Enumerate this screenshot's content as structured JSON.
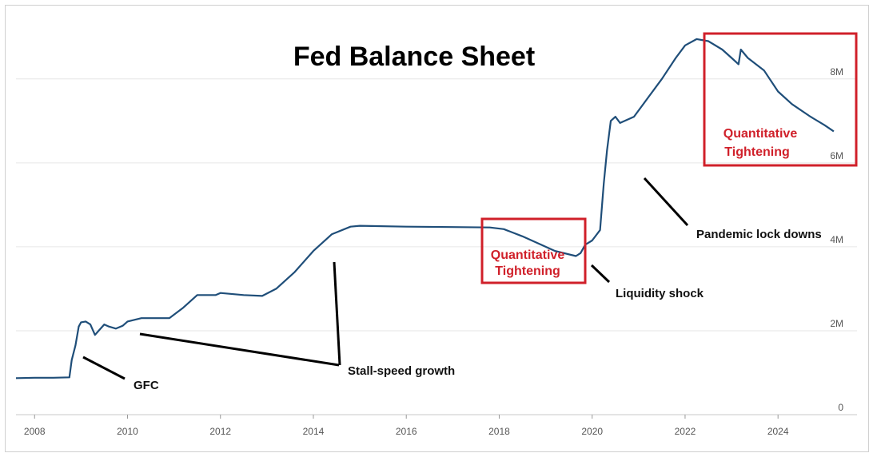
{
  "chart_data": {
    "type": "line",
    "title": "Fed Balance Sheet",
    "xlabel": "",
    "ylabel": "",
    "xlim": [
      2007.6,
      2025.7
    ],
    "ylim": [
      0,
      9.5
    ],
    "grid": true,
    "x_ticks": [
      "2008",
      "2010",
      "2012",
      "2014",
      "2016",
      "2018",
      "2020",
      "2022",
      "2024"
    ],
    "y_ticks": [
      "0",
      "2M",
      "4M",
      "6M",
      "8M"
    ],
    "series": [
      {
        "name": "",
        "color": "#1f4e79",
        "points": [
          [
            2007.6,
            0.87
          ],
          [
            2008.0,
            0.88
          ],
          [
            2008.4,
            0.88
          ],
          [
            2008.75,
            0.89
          ],
          [
            2008.8,
            1.3
          ],
          [
            2008.88,
            1.65
          ],
          [
            2008.95,
            2.1
          ],
          [
            2009.0,
            2.2
          ],
          [
            2009.1,
            2.22
          ],
          [
            2009.2,
            2.15
          ],
          [
            2009.3,
            1.9
          ],
          [
            2009.38,
            2.0
          ],
          [
            2009.5,
            2.15
          ],
          [
            2009.6,
            2.1
          ],
          [
            2009.75,
            2.05
          ],
          [
            2009.9,
            2.12
          ],
          [
            2010.0,
            2.22
          ],
          [
            2010.3,
            2.3
          ],
          [
            2010.7,
            2.3
          ],
          [
            2010.9,
            2.3
          ],
          [
            2011.2,
            2.55
          ],
          [
            2011.5,
            2.85
          ],
          [
            2011.9,
            2.85
          ],
          [
            2012.0,
            2.9
          ],
          [
            2012.5,
            2.85
          ],
          [
            2012.9,
            2.83
          ],
          [
            2013.2,
            3.0
          ],
          [
            2013.6,
            3.4
          ],
          [
            2014.0,
            3.9
          ],
          [
            2014.4,
            4.3
          ],
          [
            2014.8,
            4.48
          ],
          [
            2015.0,
            4.5
          ],
          [
            2016.0,
            4.48
          ],
          [
            2017.0,
            4.47
          ],
          [
            2017.8,
            4.46
          ],
          [
            2018.1,
            4.42
          ],
          [
            2018.5,
            4.25
          ],
          [
            2018.9,
            4.05
          ],
          [
            2019.2,
            3.9
          ],
          [
            2019.65,
            3.78
          ],
          [
            2019.75,
            3.85
          ],
          [
            2019.85,
            4.05
          ],
          [
            2020.0,
            4.15
          ],
          [
            2020.17,
            4.4
          ],
          [
            2020.25,
            5.5
          ],
          [
            2020.32,
            6.3
          ],
          [
            2020.4,
            7.0
          ],
          [
            2020.5,
            7.1
          ],
          [
            2020.6,
            6.95
          ],
          [
            2020.9,
            7.1
          ],
          [
            2021.2,
            7.55
          ],
          [
            2021.5,
            8.0
          ],
          [
            2021.8,
            8.5
          ],
          [
            2022.0,
            8.8
          ],
          [
            2022.25,
            8.95
          ],
          [
            2022.5,
            8.9
          ],
          [
            2022.8,
            8.7
          ],
          [
            2023.0,
            8.5
          ],
          [
            2023.15,
            8.35
          ],
          [
            2023.2,
            8.7
          ],
          [
            2023.35,
            8.5
          ],
          [
            2023.7,
            8.2
          ],
          [
            2024.0,
            7.7
          ],
          [
            2024.3,
            7.4
          ],
          [
            2024.7,
            7.1
          ],
          [
            2025.0,
            6.9
          ],
          [
            2025.2,
            6.75
          ]
        ]
      }
    ],
    "annotations": [
      {
        "text": "GFC",
        "color": "#111111"
      },
      {
        "text": "Stall-speed growth",
        "color": "#111111"
      },
      {
        "text": "Quantitative Tightening",
        "color": "#d0202a",
        "boxed": true
      },
      {
        "text": "Liquidity shock",
        "color": "#111111"
      },
      {
        "text": "Pandemic lock downs",
        "color": "#111111"
      },
      {
        "text": "Quantitative Tightening",
        "color": "#d0202a",
        "boxed": true
      }
    ]
  }
}
